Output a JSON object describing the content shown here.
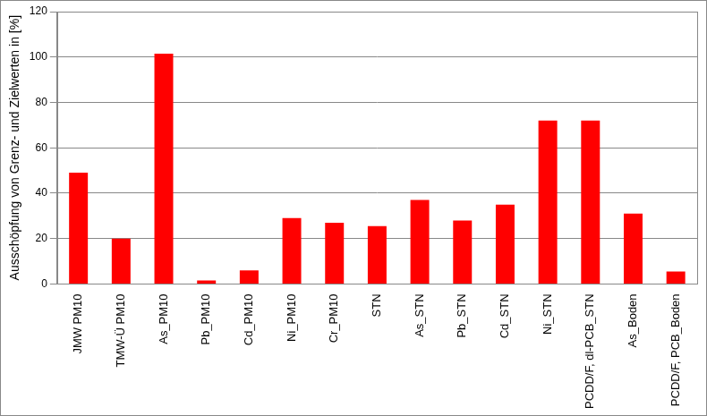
{
  "chart_data": {
    "type": "bar",
    "y_label": "Ausschöpfung von Grenz- und Zielwerten in [%]",
    "categories": [
      "JMW PM10",
      "TMW-Ü PM10",
      "As_PM10",
      "Pb_PM10",
      "Cd_PM10",
      "Ni_PM10",
      "Cr_PM10",
      "STN",
      "As_STN",
      "Pb_STN",
      "Cd_STN",
      "Ni_STN",
      "PCDD/F, dl-PCB_STN",
      "As_Boden",
      "PCDD/F, PCB_Boden"
    ],
    "values": [
      49,
      20,
      101.5,
      1.5,
      6,
      29,
      27,
      25.5,
      37,
      28,
      35,
      72,
      72,
      31,
      5.5
    ],
    "color": "#ff0000",
    "ylim": [
      0,
      120
    ],
    "yticks": [
      0,
      20,
      40,
      60,
      80,
      100,
      120
    ],
    "grid": true
  }
}
